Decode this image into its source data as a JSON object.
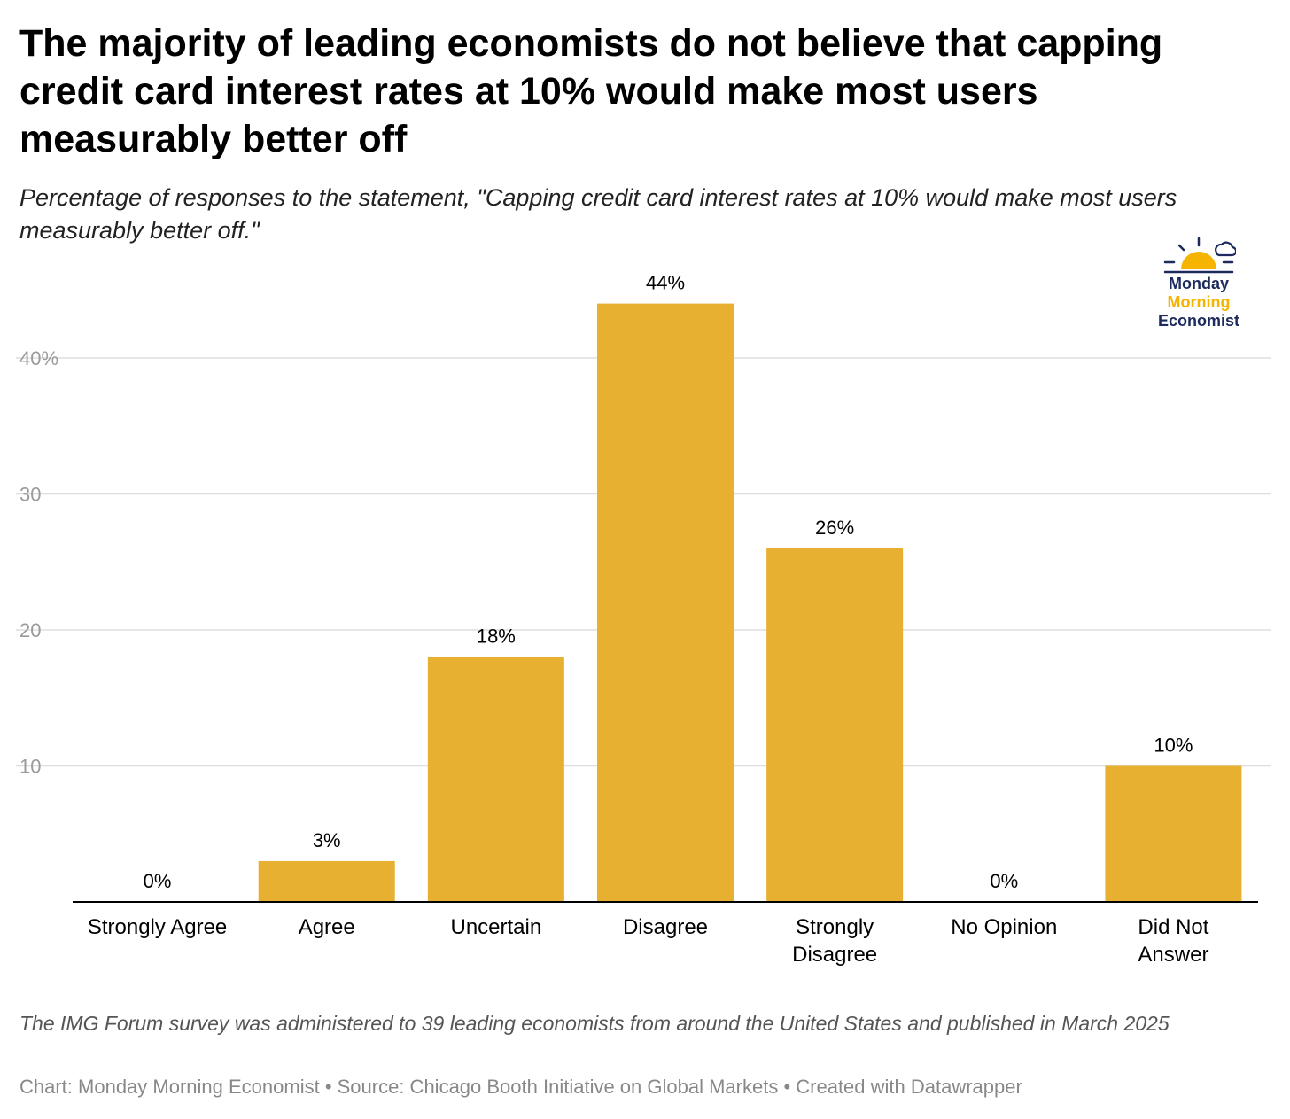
{
  "title": "The majority of leading economists do not believe that capping credit card interest rates at 10% would make most users measurably better off",
  "subtitle": "Percentage of responses to the statement, \"Capping credit card interest rates at 10% would make most users measurably better off.\"",
  "logo": {
    "line1": "Monday",
    "line2": "Morning",
    "line3": "Economist",
    "color_primary": "#1c2a5e",
    "color_accent": "#f4b400",
    "icon": "sunrise-cloud-icon"
  },
  "colors": {
    "bar": "#e8b030",
    "grid": "#dddddd",
    "axis": "#000000",
    "tick_label": "#9a9a9a"
  },
  "chart_data": {
    "type": "bar",
    "categories": [
      "Strongly Agree",
      "Agree",
      "Uncertain",
      "Disagree",
      "Strongly Disagree",
      "No Opinion",
      "Did Not Answer"
    ],
    "category_lines": [
      [
        "Strongly Agree"
      ],
      [
        "Agree"
      ],
      [
        "Uncertain"
      ],
      [
        "Disagree"
      ],
      [
        "Strongly",
        "Disagree"
      ],
      [
        "No Opinion"
      ],
      [
        "Did Not",
        "Answer"
      ]
    ],
    "values": [
      0,
      3,
      18,
      44,
      26,
      0,
      10
    ],
    "data_labels": [
      "0%",
      "3%",
      "18%",
      "44%",
      "26%",
      "0%",
      "10%"
    ],
    "ylim": [
      0,
      46
    ],
    "yticks": [
      10,
      20,
      30,
      40
    ],
    "ytick_labels": [
      "10",
      "20",
      "30",
      "40%"
    ],
    "grid": true,
    "xlabel": "",
    "ylabel": ""
  },
  "footer": {
    "note": "The IMG Forum survey was administered to 39 leading economists from around the United States and published in March 2025",
    "credits": "Chart: Monday Morning Economist • Source: Chicago Booth Initiative on Global Markets • Created with Datawrapper"
  }
}
